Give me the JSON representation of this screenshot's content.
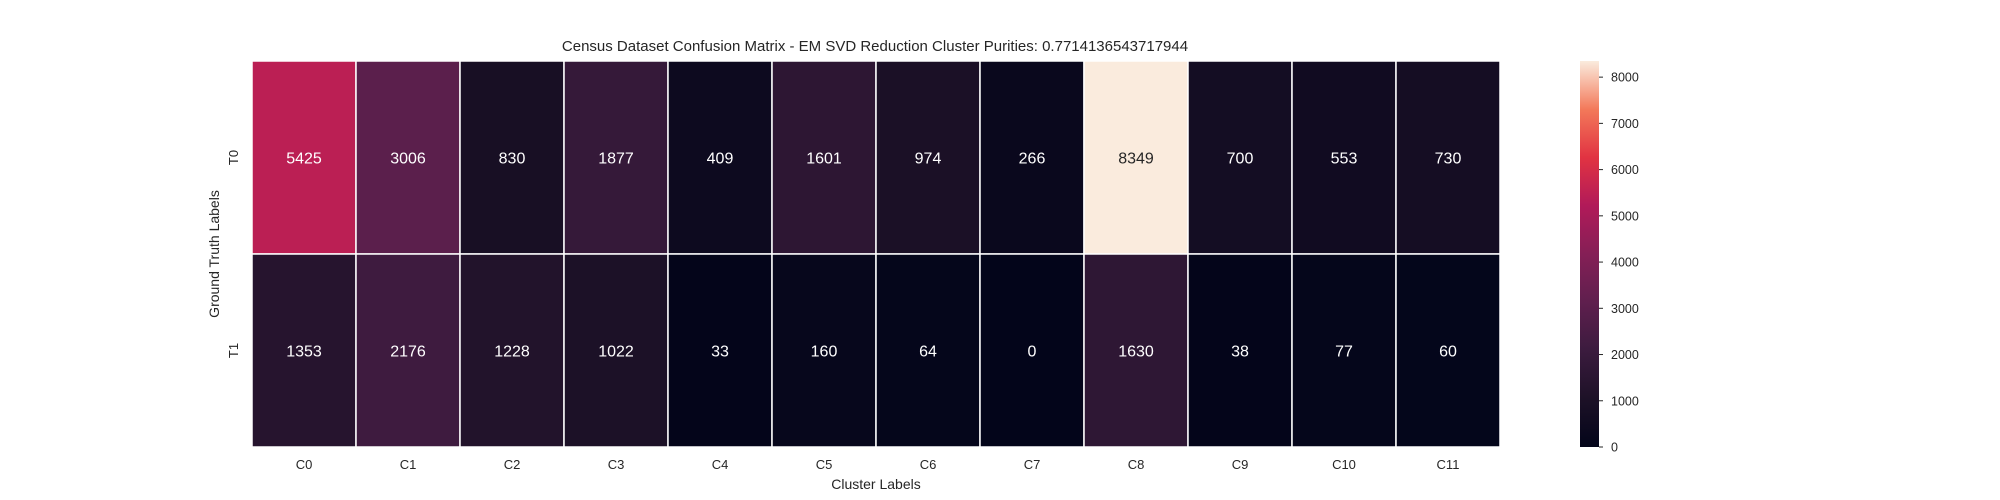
{
  "chart_data": {
    "type": "heatmap",
    "title": "Census Dataset Confusion Matrix - EM SVD Reduction Cluster Purities: 0.7714136543717944",
    "xlabel": "Cluster Labels",
    "ylabel": "Ground Truth Labels",
    "x_categories": [
      "C0",
      "C1",
      "C2",
      "C3",
      "C4",
      "C5",
      "C6",
      "C7",
      "C8",
      "C9",
      "C10",
      "C11"
    ],
    "y_categories": [
      "T0",
      "T1"
    ],
    "values": [
      [
        5425,
        3006,
        830,
        1877,
        409,
        1601,
        974,
        266,
        8349,
        700,
        553,
        730
      ],
      [
        1353,
        2176,
        1228,
        1022,
        33,
        160,
        64,
        0,
        1630,
        38,
        77,
        60
      ]
    ],
    "colorbar": {
      "range": [
        0,
        8349
      ],
      "ticks": [
        0,
        1000,
        2000,
        3000,
        4000,
        5000,
        6000,
        7000,
        8000
      ],
      "colormap": "rocket"
    },
    "grid": false
  }
}
